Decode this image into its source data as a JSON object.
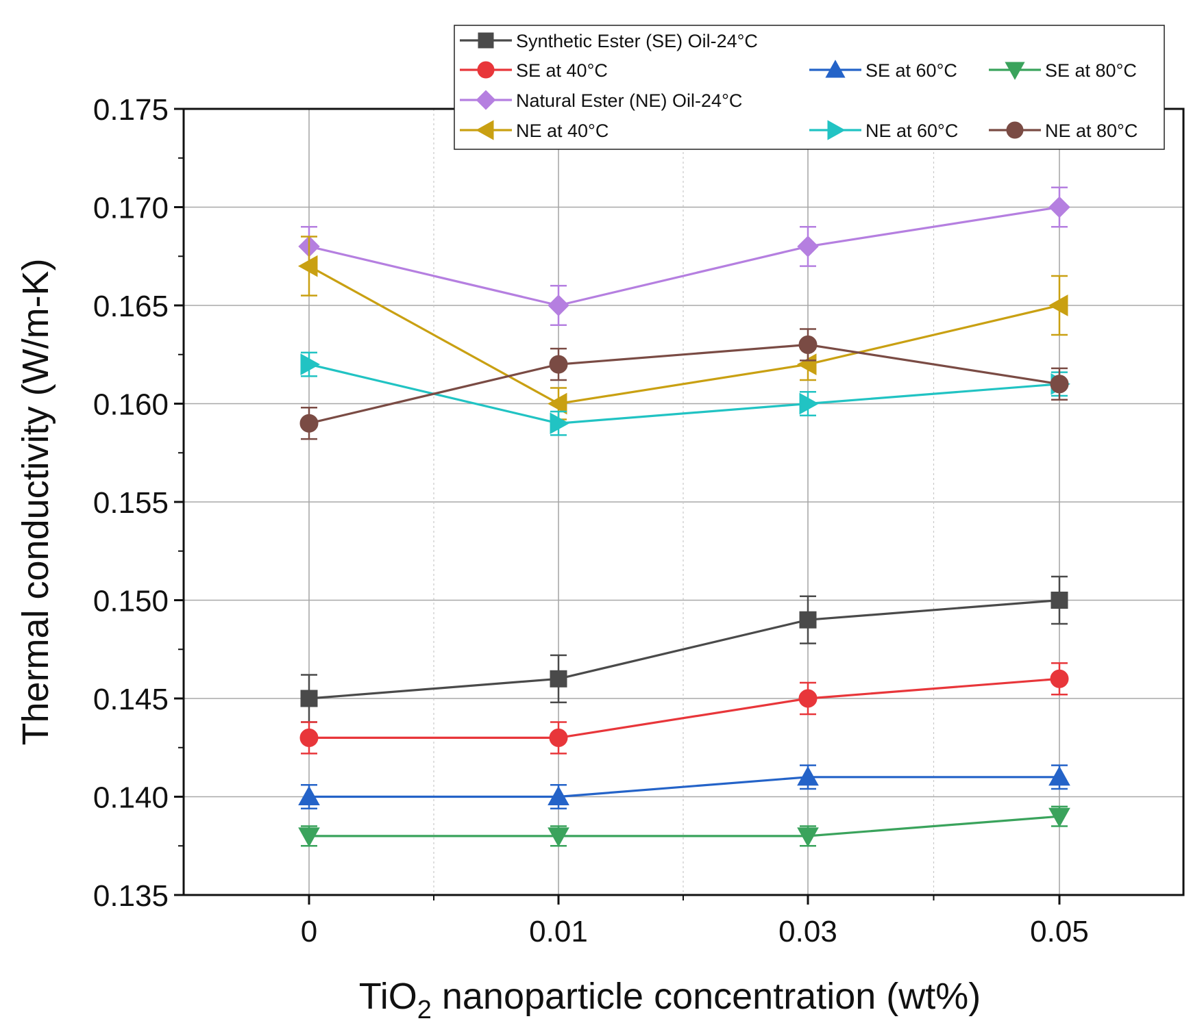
{
  "chart_data": {
    "type": "line",
    "title": "",
    "xlabel": "TiO2 nanoparticle concentration (wt%)",
    "xlabel_parts": {
      "pre": "TiO",
      "sub": "2",
      "post": " nanoparticle concentration (wt%)"
    },
    "ylabel": "Thermal conductivity (W/m-K)",
    "categories": [
      "0",
      "0.01",
      "0.03",
      "0.05"
    ],
    "ylim": [
      0.135,
      0.175
    ],
    "yticks": [
      "0.135",
      "0.140",
      "0.145",
      "0.150",
      "0.155",
      "0.160",
      "0.165",
      "0.170",
      "0.175"
    ],
    "grid": true,
    "legend_position": "top-right",
    "series": [
      {
        "name": "Synthetic Ester (SE) Oil-24°C",
        "color": "#4a4a4a",
        "marker": "square",
        "values": [
          0.145,
          0.146,
          0.149,
          0.15
        ],
        "errors": [
          0.0012,
          0.0012,
          0.0012,
          0.0012
        ]
      },
      {
        "name": "SE at 40°C",
        "color": "#e8363a",
        "marker": "circle",
        "values": [
          0.143,
          0.143,
          0.145,
          0.146
        ],
        "errors": [
          0.0008,
          0.0008,
          0.0008,
          0.0008
        ]
      },
      {
        "name": "SE at 60°C",
        "color": "#2463c8",
        "marker": "triangle-up",
        "values": [
          0.14,
          0.14,
          0.141,
          0.141
        ],
        "errors": [
          0.0006,
          0.0006,
          0.0006,
          0.0006
        ]
      },
      {
        "name": "SE at 80°C",
        "color": "#3aa35c",
        "marker": "triangle-down",
        "values": [
          0.138,
          0.138,
          0.138,
          0.139
        ],
        "errors": [
          0.0005,
          0.0005,
          0.0005,
          0.0005
        ]
      },
      {
        "name": "Natural Ester (NE) Oil-24°C",
        "color": "#b57fe0",
        "marker": "diamond",
        "values": [
          0.168,
          0.165,
          0.168,
          0.17
        ],
        "errors": [
          0.001,
          0.001,
          0.001,
          0.001
        ]
      },
      {
        "name": "NE at 40°C",
        "color": "#c9a012",
        "marker": "triangle-left",
        "values": [
          0.167,
          0.16,
          0.162,
          0.165
        ],
        "errors": [
          0.0015,
          0.0008,
          0.0008,
          0.0015
        ]
      },
      {
        "name": "NE at 60°C",
        "color": "#21c3c3",
        "marker": "triangle-right",
        "values": [
          0.162,
          0.159,
          0.16,
          0.161
        ],
        "errors": [
          0.0006,
          0.0006,
          0.0006,
          0.0006
        ]
      },
      {
        "name": "NE at 80°C",
        "color": "#7a4b44",
        "marker": "circle",
        "values": [
          0.159,
          0.162,
          0.163,
          0.161
        ],
        "errors": [
          0.0008,
          0.0008,
          0.0008,
          0.0008
        ]
      }
    ]
  }
}
